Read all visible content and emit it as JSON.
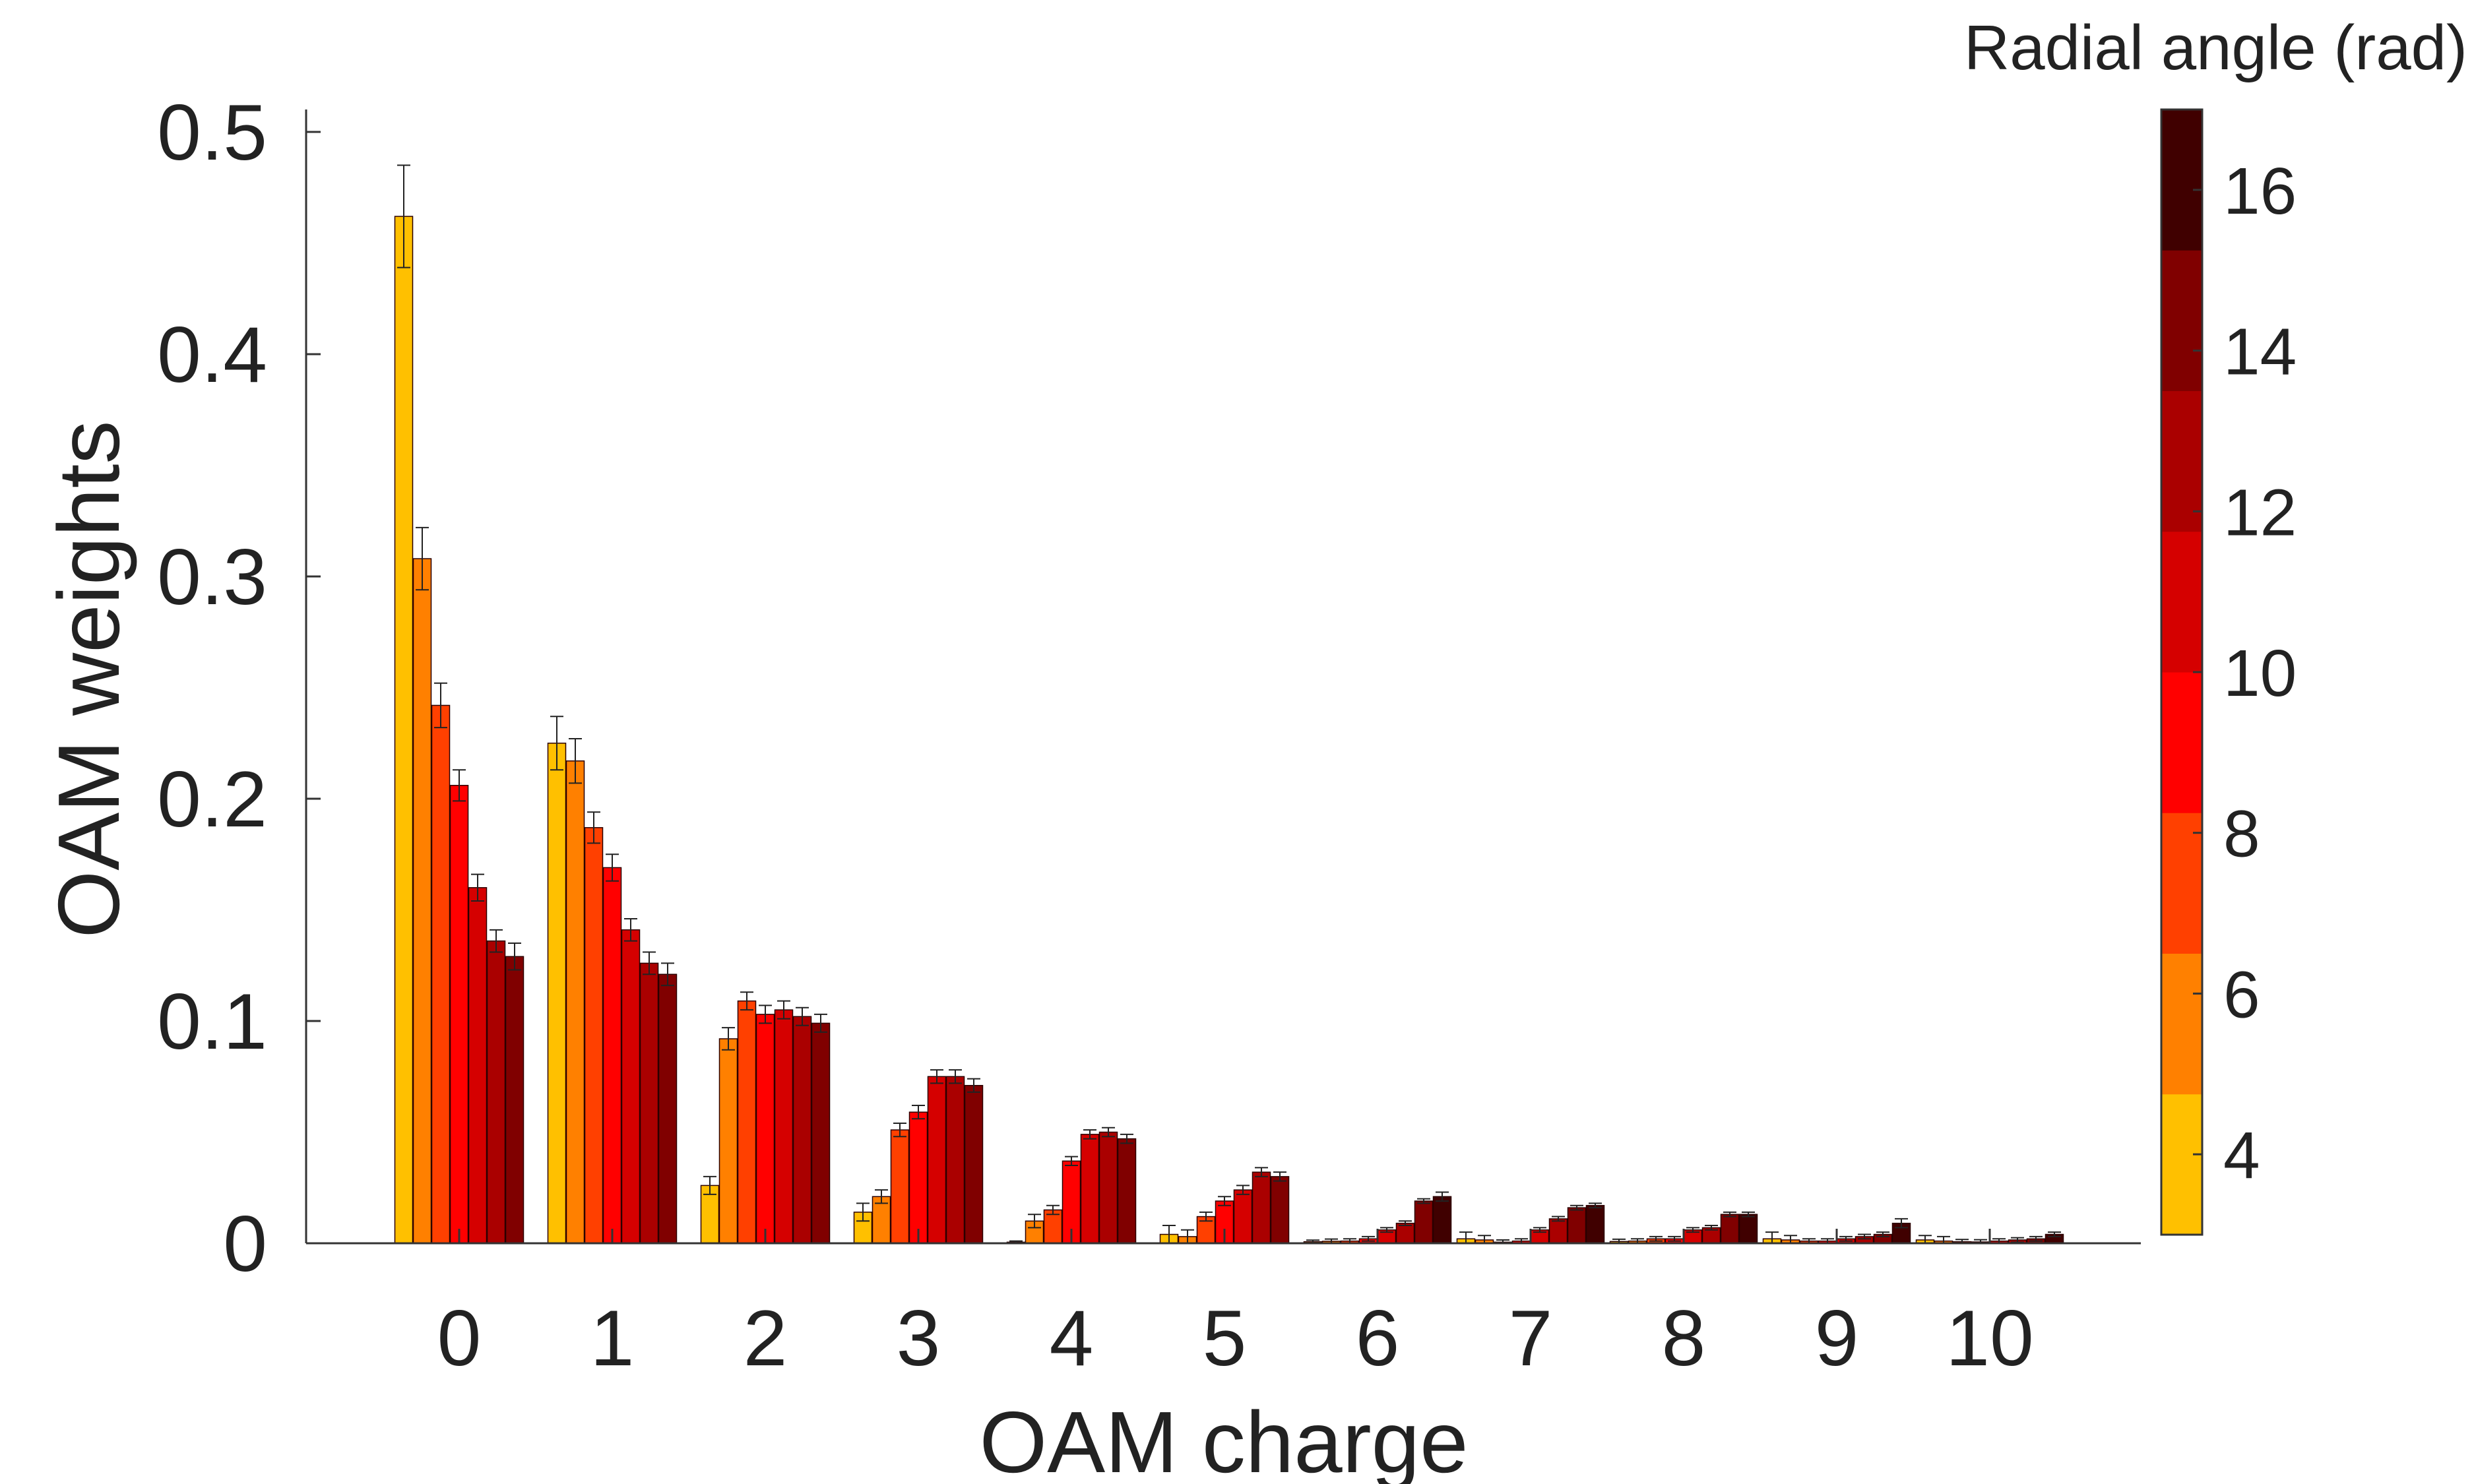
{
  "chart_data": {
    "type": "bar",
    "xlabel": "OAM charge",
    "ylabel": "OAM weights",
    "categories": [
      "0",
      "1",
      "2",
      "3",
      "4",
      "5",
      "6",
      "7",
      "8",
      "9",
      "10"
    ],
    "ylim": [
      0,
      0.5
    ],
    "yticks": [
      "0",
      "0.1",
      "0.2",
      "0.3",
      "0.4",
      "0.5"
    ],
    "grid": false,
    "error_bars": true,
    "series": [
      {
        "color": "#FFC000",
        "values": [
          0.462,
          0.225,
          0.026,
          0.014,
          0.0005,
          0.004,
          0.0007,
          0.002,
          0.0008,
          0.002,
          0.0015
        ],
        "errors": [
          0.023,
          0.012,
          0.004,
          0.004,
          0.0005,
          0.004,
          0.0007,
          0.003,
          0.001,
          0.003,
          0.002
        ]
      },
      {
        "color": "#FF8000",
        "values": [
          0.308,
          0.217,
          0.092,
          0.021,
          0.01,
          0.003,
          0.0009,
          0.0015,
          0.001,
          0.0015,
          0.001
        ],
        "errors": [
          0.014,
          0.01,
          0.005,
          0.003,
          0.003,
          0.003,
          0.001,
          0.002,
          0.001,
          0.002,
          0.002
        ]
      },
      {
        "color": "#FF4000",
        "values": [
          0.242,
          0.187,
          0.109,
          0.051,
          0.015,
          0.012,
          0.001,
          0.0005,
          0.002,
          0.001,
          0.0007
        ],
        "errors": [
          0.01,
          0.007,
          0.004,
          0.003,
          0.002,
          0.002,
          0.001,
          0.001,
          0.001,
          0.001,
          0.001
        ]
      },
      {
        "color": "#FF0000",
        "values": [
          0.206,
          0.169,
          0.103,
          0.059,
          0.037,
          0.019,
          0.002,
          0.001,
          0.002,
          0.001,
          0.0006
        ],
        "errors": [
          0.007,
          0.006,
          0.004,
          0.003,
          0.002,
          0.002,
          0.001,
          0.001,
          0.001,
          0.001,
          0.001
        ]
      },
      {
        "color": "#D50000",
        "values": [
          0.16,
          0.141,
          0.105,
          0.075,
          0.049,
          0.024,
          0.006,
          0.006,
          0.006,
          0.002,
          0.001
        ],
        "errors": [
          0.006,
          0.005,
          0.004,
          0.003,
          0.002,
          0.002,
          0.001,
          0.001,
          0.001,
          0.001,
          0.001
        ]
      },
      {
        "color": "#AA0000",
        "values": [
          0.136,
          0.126,
          0.102,
          0.075,
          0.05,
          0.032,
          0.009,
          0.011,
          0.007,
          0.003,
          0.0015
        ],
        "errors": [
          0.005,
          0.005,
          0.004,
          0.003,
          0.002,
          0.002,
          0.001,
          0.001,
          0.001,
          0.001,
          0.001
        ]
      },
      {
        "color": "#800000",
        "values": [
          0.129,
          0.121,
          0.099,
          0.071,
          0.047,
          0.03,
          0.019,
          0.016,
          0.013,
          0.004,
          0.002
        ],
        "errors": [
          0.006,
          0.005,
          0.004,
          0.003,
          0.002,
          0.002,
          0.001,
          0.001,
          0.001,
          0.001,
          0.001
        ]
      },
      {
        "color": "#400000",
        "values": [
          0,
          0,
          0,
          0,
          0,
          0,
          0.021,
          0.017,
          0.013,
          0.009,
          0.004
        ],
        "errors": [
          0,
          0,
          0,
          0,
          0,
          0,
          0.002,
          0.001,
          0.001,
          0.002,
          0.001
        ]
      }
    ],
    "colorbar": {
      "title": "Radial angle (rad)",
      "range": [
        3,
        17
      ],
      "ticks": [
        4,
        6,
        8,
        10,
        12,
        14,
        16
      ],
      "tick_labels": [
        "4",
        "6",
        "8",
        "10",
        "12",
        "14",
        "16"
      ],
      "colors": [
        "#FFC000",
        "#FF8000",
        "#FF4000",
        "#FF0000",
        "#D50000",
        "#AA0000",
        "#800000",
        "#400000"
      ]
    }
  }
}
